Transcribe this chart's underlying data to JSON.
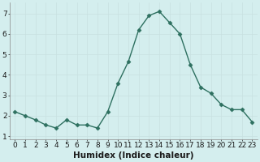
{
  "x": [
    0,
    1,
    2,
    3,
    4,
    5,
    6,
    7,
    8,
    9,
    10,
    11,
    12,
    13,
    14,
    15,
    16,
    17,
    18,
    19,
    20,
    21,
    22,
    23
  ],
  "y": [
    2.2,
    2.0,
    1.8,
    1.55,
    1.4,
    1.8,
    1.55,
    1.55,
    1.4,
    2.2,
    3.6,
    4.65,
    6.2,
    6.9,
    7.1,
    6.55,
    6.0,
    4.5,
    3.4,
    3.1,
    2.55,
    2.3,
    2.3,
    1.7
  ],
  "xlabel": "Humidex (Indice chaleur)",
  "xlim_min": -0.5,
  "xlim_max": 23.5,
  "ylim_min": 0.85,
  "ylim_max": 7.55,
  "yticks": [
    1,
    2,
    3,
    4,
    5,
    6,
    7
  ],
  "xticks": [
    0,
    1,
    2,
    3,
    4,
    5,
    6,
    7,
    8,
    9,
    10,
    11,
    12,
    13,
    14,
    15,
    16,
    17,
    18,
    19,
    20,
    21,
    22,
    23
  ],
  "line_color": "#2e7060",
  "marker": "D",
  "marker_size": 2.5,
  "bg_color": "#d4eeee",
  "grid_color": "#b8d8d8",
  "font_color": "#1a1a1a",
  "xlabel_fontsize": 7.5,
  "tick_fontsize": 6.5
}
